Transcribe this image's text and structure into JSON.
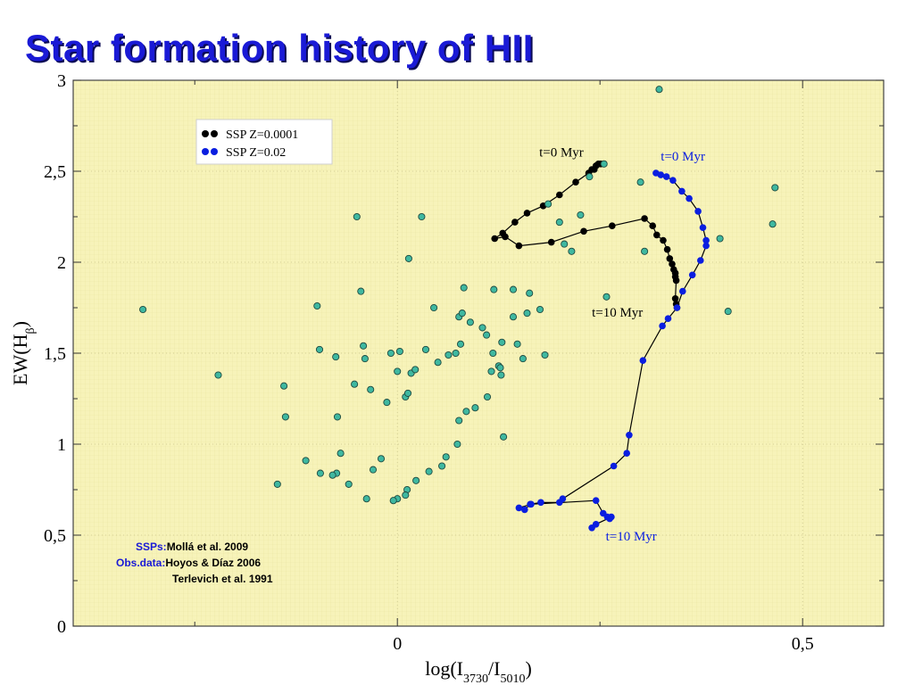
{
  "title": "Star formation history of HII",
  "chart_data": {
    "type": "scatter",
    "xlabel": "log(I3730/I5010)",
    "ylabel": "EW(Hβ)",
    "xlim": [
      -0.4,
      0.6
    ],
    "ylim": [
      0,
      3
    ],
    "xticks": [
      {
        "value": 0,
        "label": "0"
      },
      {
        "value": 0.5,
        "label": "0,5"
      }
    ],
    "yticks": [
      {
        "value": 0,
        "label": "0"
      },
      {
        "value": 0.5,
        "label": "0,5"
      },
      {
        "value": 1,
        "label": "1"
      },
      {
        "value": 1.5,
        "label": "1,5"
      },
      {
        "value": 2,
        "label": "2"
      },
      {
        "value": 2.5,
        "label": "2,5"
      },
      {
        "value": 3,
        "label": "3"
      }
    ],
    "grid": true,
    "legend_position": "top-left",
    "colors": {
      "observed": "#3fb8a0",
      "ssp_low_z": "#000000",
      "ssp_solar": "#0a1ee0",
      "background": "#f7f3b9"
    },
    "legend": [
      {
        "label": "SSP Z=0.0001",
        "color": "#000000"
      },
      {
        "label": "SSP Z=0.02",
        "color": "#0a1ee0"
      }
    ],
    "series": [
      {
        "name": "SSP Z=0.0001",
        "color": "#000000",
        "x": [
          0.251,
          0.248,
          0.245,
          0.243,
          0.24,
          0.236,
          0.22,
          0.2,
          0.18,
          0.16,
          0.145,
          0.13,
          0.12,
          0.133,
          0.15,
          0.19,
          0.23,
          0.265,
          0.305,
          0.315,
          0.32,
          0.328,
          0.333,
          0.336,
          0.339,
          0.341,
          0.343,
          0.343,
          0.344,
          0.343,
          0.344,
          0.345
        ],
        "y": [
          2.54,
          2.54,
          2.53,
          2.51,
          2.51,
          2.49,
          2.44,
          2.37,
          2.31,
          2.27,
          2.22,
          2.16,
          2.13,
          2.14,
          2.09,
          2.11,
          2.17,
          2.2,
          2.24,
          2.2,
          2.15,
          2.12,
          2.07,
          2.02,
          1.99,
          1.96,
          1.94,
          1.92,
          1.9,
          1.8,
          1.77,
          1.75
        ]
      },
      {
        "name": "SSP Z=0.02",
        "color": "#0a1ee0",
        "x": [
          0.319,
          0.325,
          0.332,
          0.34,
          0.351,
          0.36,
          0.371,
          0.377,
          0.381,
          0.381,
          0.374,
          0.364,
          0.352,
          0.345,
          0.334,
          0.327,
          0.303,
          0.286,
          0.283,
          0.267,
          0.204,
          0.2,
          0.177,
          0.164,
          0.157,
          0.15,
          0.165,
          0.245,
          0.254,
          0.259,
          0.262,
          0.264,
          0.245,
          0.24
        ],
        "y": [
          2.49,
          2.48,
          2.47,
          2.45,
          2.39,
          2.35,
          2.28,
          2.19,
          2.12,
          2.09,
          2.01,
          1.93,
          1.84,
          1.75,
          1.69,
          1.65,
          1.46,
          1.05,
          0.95,
          0.88,
          0.7,
          0.68,
          0.68,
          0.67,
          0.64,
          0.65,
          0.67,
          0.69,
          0.62,
          0.6,
          0.59,
          0.6,
          0.56,
          0.54
        ]
      },
      {
        "name": "",
        "color": "#3fb8a0",
        "x": [
          0.323,
          0.466,
          0.463,
          0.398,
          0.408,
          0.03,
          0.258,
          -0.05,
          0.014,
          0.082,
          -0.045,
          -0.099,
          0.119,
          0.076,
          0.045,
          -0.314,
          -0.221,
          -0.14,
          -0.138,
          -0.096,
          -0.076,
          -0.042,
          -0.04,
          -0.074,
          -0.053,
          -0.033,
          -0.013,
          -0.008,
          0.0,
          0.003,
          0.01,
          0.013,
          0.017,
          0.022,
          0.035,
          0.05,
          0.063,
          0.072,
          0.078,
          0.08,
          0.09,
          0.105,
          0.11,
          0.125,
          0.128,
          0.131,
          0.143,
          0.148,
          0.155,
          0.163,
          0.176,
          0.182,
          0.186,
          0.2,
          0.206,
          0.215,
          0.226,
          0.237,
          0.255,
          0.3,
          0.305,
          0.143,
          0.16,
          0.129,
          0.127,
          0.118,
          0.116,
          0.111,
          0.096,
          0.085,
          0.076,
          0.074,
          0.06,
          0.055,
          0.039,
          0.023,
          0.012,
          0.01,
          0.0,
          -0.005,
          -0.02,
          -0.03,
          -0.07,
          -0.075,
          -0.095,
          -0.113,
          -0.08,
          -0.06,
          -0.038,
          -0.148
        ],
        "y": [
          2.95,
          2.41,
          2.21,
          2.13,
          1.73,
          2.25,
          1.81,
          2.25,
          2.02,
          1.86,
          1.84,
          1.76,
          1.85,
          1.7,
          1.75,
          1.74,
          1.38,
          1.32,
          1.15,
          1.52,
          1.48,
          1.54,
          1.47,
          1.15,
          1.33,
          1.3,
          1.23,
          1.5,
          1.4,
          1.51,
          1.26,
          1.28,
          1.39,
          1.41,
          1.52,
          1.45,
          1.49,
          1.5,
          1.55,
          1.72,
          1.67,
          1.64,
          1.6,
          1.43,
          1.38,
          1.04,
          1.7,
          1.55,
          1.47,
          1.83,
          1.74,
          1.49,
          2.32,
          2.22,
          2.1,
          2.06,
          2.26,
          2.47,
          2.54,
          2.44,
          2.06,
          1.85,
          1.72,
          1.56,
          1.42,
          1.5,
          1.4,
          1.26,
          1.2,
          1.18,
          1.13,
          1.0,
          0.93,
          0.88,
          0.85,
          0.8,
          0.75,
          0.72,
          0.7,
          0.69,
          0.92,
          0.86,
          0.95,
          0.84,
          0.84,
          0.91,
          0.83,
          0.78,
          0.7,
          0.78
        ]
      }
    ],
    "annotations": [
      {
        "text": "t=0 Myr",
        "x": 0.175,
        "y": 2.58,
        "color": "#000000"
      },
      {
        "text": "t=0 Myr",
        "x": 0.325,
        "y": 2.56,
        "color": "#0a1ee0"
      },
      {
        "text": "t=10 Myr",
        "x": 0.24,
        "y": 1.7,
        "color": "#000000"
      },
      {
        "text": "t=10 Myr",
        "x": 0.257,
        "y": 0.47,
        "color": "#0a1ee0"
      }
    ]
  },
  "credits": {
    "ssps_key": "SSPs:",
    "ssps_value": "Mollá et al. 2009",
    "obs_key": "Obs.data:",
    "obs_value_1": "Hoyos & Díaz 2006",
    "obs_value_2": "Terlevich et al. 1991"
  }
}
